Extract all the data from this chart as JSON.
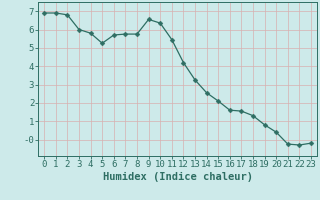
{
  "x": [
    0,
    1,
    2,
    3,
    4,
    5,
    6,
    7,
    8,
    9,
    10,
    11,
    12,
    13,
    14,
    15,
    16,
    17,
    18,
    19,
    20,
    21,
    22,
    23
  ],
  "y": [
    6.9,
    6.9,
    6.8,
    6.0,
    5.8,
    5.25,
    5.7,
    5.75,
    5.75,
    6.55,
    6.35,
    5.45,
    4.2,
    3.25,
    2.55,
    2.1,
    1.6,
    1.55,
    1.3,
    0.8,
    0.4,
    -0.25,
    -0.3,
    -0.2
  ],
  "line_color": "#2e6e63",
  "marker": "D",
  "marker_size": 2.5,
  "bg_color": "#cdeaea",
  "grid_color": "#b0d4d4",
  "xlabel": "Humidex (Indice chaleur)",
  "xlim": [
    -0.5,
    23.5
  ],
  "ylim": [
    -0.9,
    7.5
  ],
  "yticks": [
    0,
    1,
    2,
    3,
    4,
    5,
    6,
    7
  ],
  "ytick_labels": [
    "-0",
    "1",
    "2",
    "3",
    "4",
    "5",
    "6",
    "7"
  ],
  "xticks": [
    0,
    1,
    2,
    3,
    4,
    5,
    6,
    7,
    8,
    9,
    10,
    11,
    12,
    13,
    14,
    15,
    16,
    17,
    18,
    19,
    20,
    21,
    22,
    23
  ],
  "tick_color": "#2e6e63",
  "font_color": "#2e6e63",
  "xlabel_fontsize": 7.5,
  "tick_fontsize": 6.5
}
